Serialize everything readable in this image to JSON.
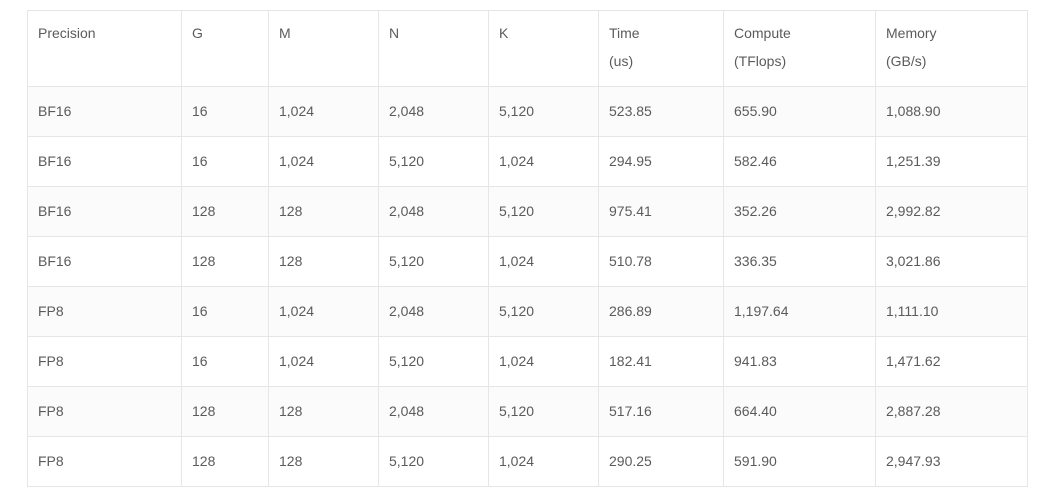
{
  "table": {
    "headers": [
      {
        "line1": "Precision",
        "line2": ""
      },
      {
        "line1": "G",
        "line2": ""
      },
      {
        "line1": "M",
        "line2": ""
      },
      {
        "line1": "N",
        "line2": ""
      },
      {
        "line1": "K",
        "line2": ""
      },
      {
        "line1": "Time",
        "line2": "(us)"
      },
      {
        "line1": "Compute",
        "line2": "(TFlops)"
      },
      {
        "line1": "Memory",
        "line2": "(GB/s)"
      }
    ],
    "rows": [
      [
        "BF16",
        "16",
        "1,024",
        "2,048",
        "5,120",
        "523.85",
        "655.90",
        "1,088.90"
      ],
      [
        "BF16",
        "16",
        "1,024",
        "5,120",
        "1,024",
        "294.95",
        "582.46",
        "1,251.39"
      ],
      [
        "BF16",
        "128",
        "128",
        "2,048",
        "5,120",
        "975.41",
        "352.26",
        "2,992.82"
      ],
      [
        "BF16",
        "128",
        "128",
        "5,120",
        "1,024",
        "510.78",
        "336.35",
        "3,021.86"
      ],
      [
        "FP8",
        "16",
        "1,024",
        "2,048",
        "5,120",
        "286.89",
        "1,197.64",
        "1,111.10"
      ],
      [
        "FP8",
        "16",
        "1,024",
        "5,120",
        "1,024",
        "182.41",
        "941.83",
        "1,471.62"
      ],
      [
        "FP8",
        "128",
        "128",
        "2,048",
        "5,120",
        "517.16",
        "664.40",
        "2,887.28"
      ],
      [
        "FP8",
        "128",
        "128",
        "5,120",
        "1,024",
        "290.25",
        "591.90",
        "2,947.93"
      ]
    ]
  }
}
